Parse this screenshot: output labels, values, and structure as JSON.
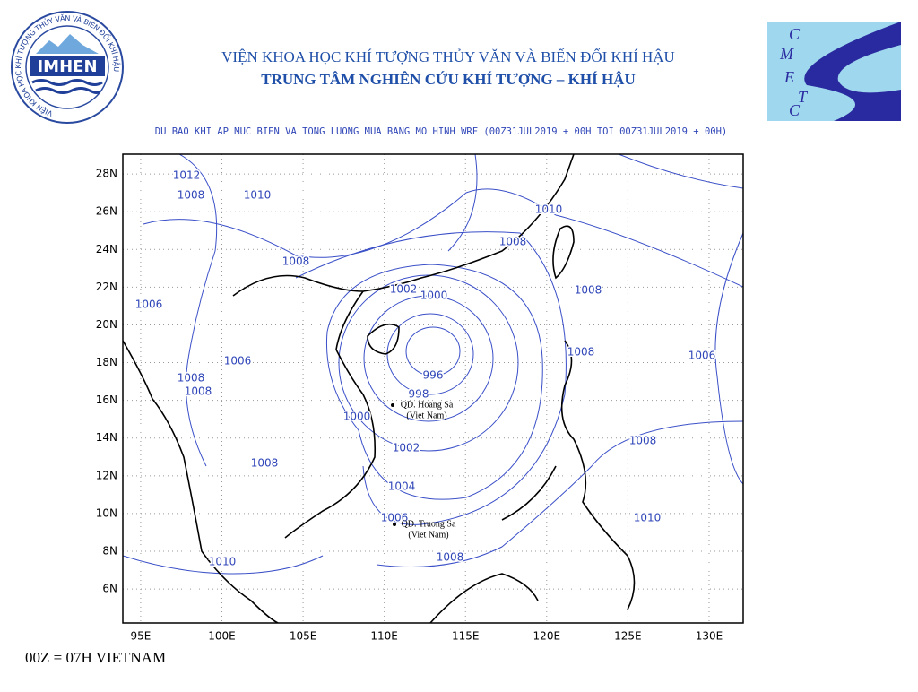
{
  "header": {
    "institute": "VIỆN KHOA HỌC KHÍ TƯỢNG THỦY VĂN VÀ BIẾN ĐỔI KHÍ HẬU",
    "center": "TRUNG TÂM NGHIÊN CỨU KHÍ TƯỢNG – KHÍ HẬU"
  },
  "logo_left": {
    "name": "IMHEN",
    "ring": "VIỆN KHOA HỌC KHÍ TƯỢNG THỦY VĂN VÀ BIẾN ĐỔI KHÍ HẬU"
  },
  "logo_right": {
    "letters": [
      "C",
      "M",
      "E",
      "T",
      "C"
    ]
  },
  "map": {
    "title": "DU BAO KHI AP MUC BIEN VA TONG LUONG MUA BANG MO HINH WRF (00Z31JUL2019 + 00H TOI 00Z31JUL2019 + 00H)",
    "xlim": [
      93.9,
      132.1
    ],
    "ylim": [
      4.2,
      29.05
    ],
    "xticks": [
      {
        "value": 95,
        "label": "95E"
      },
      {
        "value": 100,
        "label": "100E"
      },
      {
        "value": 105,
        "label": "105E"
      },
      {
        "value": 110,
        "label": "110E"
      },
      {
        "value": 115,
        "label": "115E"
      },
      {
        "value": 120,
        "label": "120E"
      },
      {
        "value": 125,
        "label": "125E"
      },
      {
        "value": 130,
        "label": "130E"
      }
    ],
    "yticks": [
      {
        "value": 6,
        "label": "6N"
      },
      {
        "value": 8,
        "label": "8N"
      },
      {
        "value": 10,
        "label": "10N"
      },
      {
        "value": 12,
        "label": "12N"
      },
      {
        "value": 14,
        "label": "14N"
      },
      {
        "value": 16,
        "label": "16N"
      },
      {
        "value": 18,
        "label": "18N"
      },
      {
        "value": 20,
        "label": "20N"
      },
      {
        "value": 22,
        "label": "22N"
      },
      {
        "value": 24,
        "label": "24N"
      },
      {
        "value": 26,
        "label": "26N"
      },
      {
        "value": 28,
        "label": "28N"
      }
    ],
    "contour_labels": [
      1012,
      1008,
      1010,
      1008,
      1006,
      1002,
      1000,
      1006,
      1008,
      1008,
      996,
      998,
      1000,
      1002,
      1004,
      1008,
      1006,
      1008,
      1010,
      1010,
      1008,
      1008,
      1008,
      1006,
      1008,
      1010
    ],
    "places": [
      {
        "name": "QD. Hoang Sa",
        "country": "(Viet Nam)"
      },
      {
        "name": "QD. Truong Sa",
        "country": "(Viet Nam)"
      }
    ]
  },
  "footer": "00Z = 07H VIETNAM"
}
